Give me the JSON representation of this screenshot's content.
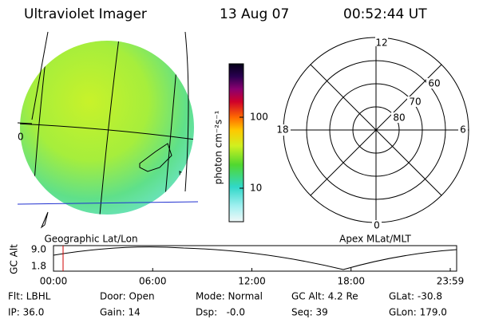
{
  "header": {
    "title": "Ultraviolet Imager",
    "date": "13 Aug 07",
    "time": "00:52:44 UT"
  },
  "geographic": {
    "label": "Geographic Lat/Lon",
    "lon_label": "0"
  },
  "colorbar": {
    "label": "photon cm⁻²s⁻¹",
    "ticks": [
      "100",
      "10"
    ]
  },
  "apex": {
    "label": "Apex MLat/MLT",
    "mlt": [
      "12",
      "18",
      "6",
      "0"
    ],
    "mlat": [
      "60",
      "70",
      "80"
    ]
  },
  "orbit": {
    "y_label": "GC Alt",
    "y_ticks": [
      "9.0",
      "1.8"
    ],
    "x_ticks": [
      "00:00",
      "06:00",
      "12:00",
      "18:00",
      "23:59"
    ]
  },
  "footer": {
    "rows": [
      [
        "Flt: LBHL",
        "Door: Open",
        "Mode: Normal",
        "GC Alt: 4.2 Re",
        "GLat: -30.8"
      ],
      [
        "IP: 36.0",
        "Gain: 14",
        "Dsp:   -0.0",
        "Seq: 39",
        "GLon: 179.0"
      ]
    ]
  }
}
